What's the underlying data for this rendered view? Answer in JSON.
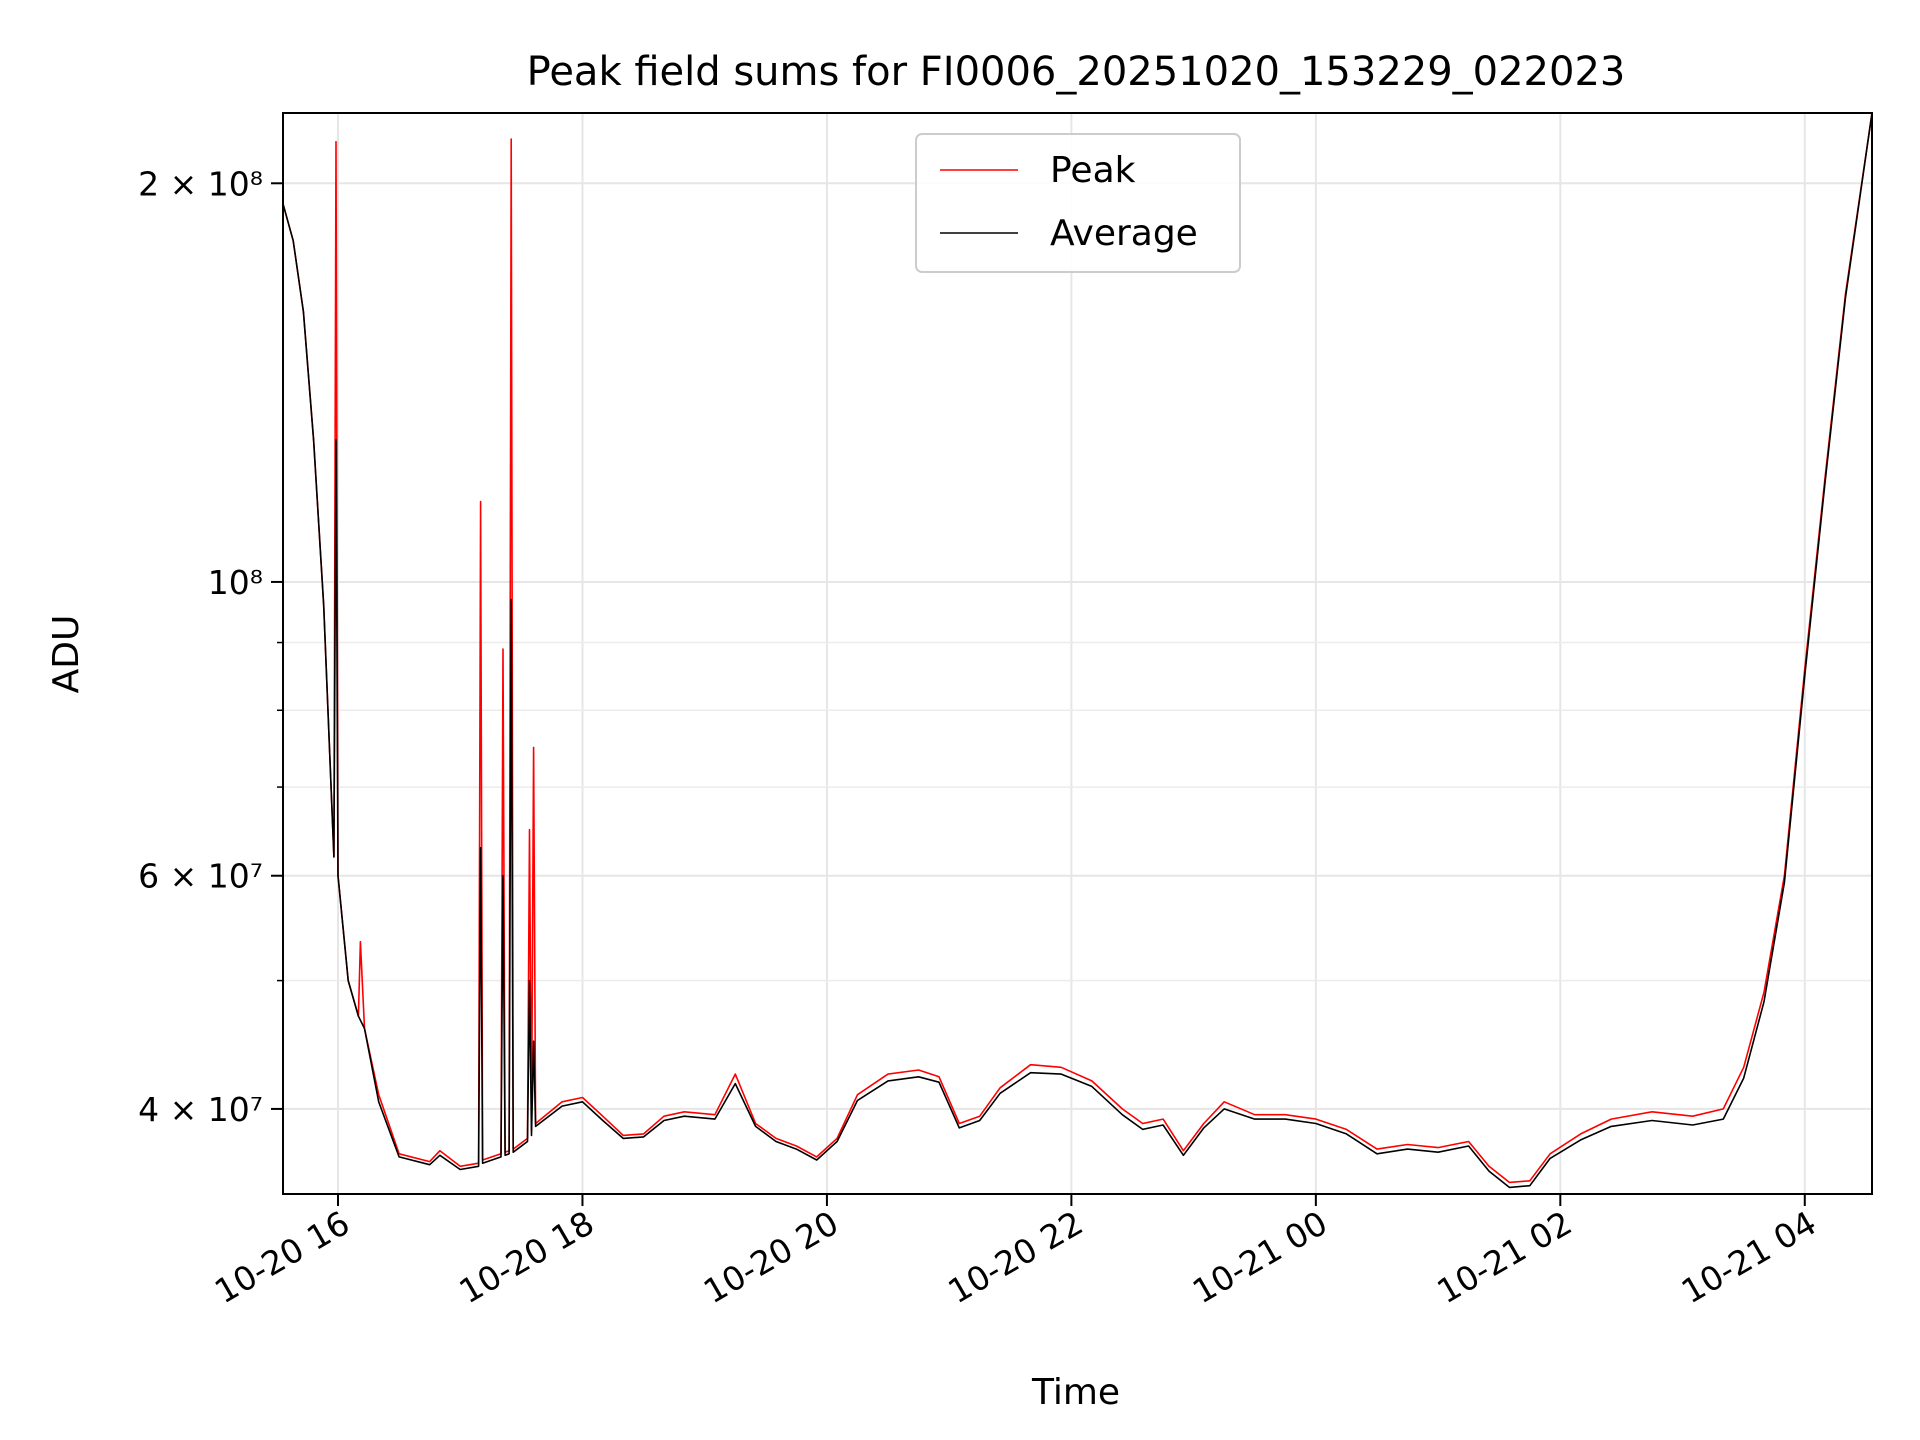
{
  "chart_data": {
    "type": "line",
    "title": "Peak field sums for FI0006_20251020_153229_022023",
    "xlabel": "Time",
    "ylabel": "ADU",
    "yscale": "log",
    "xlim": [
      "2025-10-20 15:33",
      "2025-10-21 04:33"
    ],
    "ylim": [
      34500000,
      226000000
    ],
    "grid": true,
    "legend": "upper center",
    "x_ticks": [
      {
        "t": "2025-10-20 16:00",
        "label": "10-20 16"
      },
      {
        "t": "2025-10-20 18:00",
        "label": "10-20 18"
      },
      {
        "t": "2025-10-20 20:00",
        "label": "10-20 20"
      },
      {
        "t": "2025-10-20 22:00",
        "label": "10-20 22"
      },
      {
        "t": "2025-10-21 00:00",
        "label": "10-21 00"
      },
      {
        "t": "2025-10-21 02:00",
        "label": "10-21 02"
      },
      {
        "t": "2025-10-21 04:00",
        "label": "10-21 04"
      }
    ],
    "y_ticks": [
      {
        "v": 40000000,
        "label": "4 × 10⁷"
      },
      {
        "v": 60000000,
        "label": "6 × 10⁷"
      },
      {
        "v": 100000000,
        "label": "10⁸"
      },
      {
        "v": 200000000,
        "label": "2 × 10⁸"
      }
    ],
    "y_minor_ticks": [
      50000000,
      70000000,
      80000000,
      90000000
    ],
    "series": [
      {
        "name": "Peak",
        "color": "#ff0000",
        "points": [
          [
            "2025-10-20 15:33",
            193000000
          ],
          [
            "2025-10-20 15:38",
            181000000
          ],
          [
            "2025-10-20 15:43",
            160000000
          ],
          [
            "2025-10-20 15:48",
            128000000
          ],
          [
            "2025-10-20 15:53",
            96000000
          ],
          [
            "2025-10-20 15:58",
            62000000
          ],
          [
            "2025-10-20 15:59",
            215000000
          ],
          [
            "2025-10-20 16:00",
            60000000
          ],
          [
            "2025-10-20 16:05",
            50000000
          ],
          [
            "2025-10-20 16:10",
            47000000
          ],
          [
            "2025-10-20 16:11",
            53500000
          ],
          [
            "2025-10-20 16:13",
            46000000
          ],
          [
            "2025-10-20 16:20",
            41000000
          ],
          [
            "2025-10-20 16:30",
            37000000
          ],
          [
            "2025-10-20 16:45",
            36500000
          ],
          [
            "2025-10-20 16:50",
            37200000
          ],
          [
            "2025-10-20 17:00",
            36200000
          ],
          [
            "2025-10-20 17:09",
            36400000
          ],
          [
            "2025-10-20 17:10",
            115000000
          ],
          [
            "2025-10-20 17:11",
            36600000
          ],
          [
            "2025-10-20 17:20",
            37000000
          ],
          [
            "2025-10-20 17:21",
            89000000
          ],
          [
            "2025-10-20 17:22",
            37100000
          ],
          [
            "2025-10-20 17:24",
            37200000
          ],
          [
            "2025-10-20 17:25",
            216000000
          ],
          [
            "2025-10-20 17:26",
            37300000
          ],
          [
            "2025-10-20 17:33",
            38000000
          ],
          [
            "2025-10-20 17:34",
            65000000
          ],
          [
            "2025-10-20 17:35",
            38500000
          ],
          [
            "2025-10-20 17:36",
            75000000
          ],
          [
            "2025-10-20 17:37",
            39000000
          ],
          [
            "2025-10-20 17:50",
            40500000
          ],
          [
            "2025-10-20 18:00",
            40800000
          ],
          [
            "2025-10-20 18:10",
            39500000
          ],
          [
            "2025-10-20 18:20",
            38200000
          ],
          [
            "2025-10-20 18:30",
            38300000
          ],
          [
            "2025-10-20 18:40",
            39500000
          ],
          [
            "2025-10-20 18:50",
            39800000
          ],
          [
            "2025-10-20 19:05",
            39600000
          ],
          [
            "2025-10-20 19:15",
            42500000
          ],
          [
            "2025-10-20 19:25",
            39000000
          ],
          [
            "2025-10-20 19:35",
            38000000
          ],
          [
            "2025-10-20 19:45",
            37500000
          ],
          [
            "2025-10-20 19:55",
            36800000
          ],
          [
            "2025-10-20 20:05",
            38000000
          ],
          [
            "2025-10-20 20:15",
            41000000
          ],
          [
            "2025-10-20 20:30",
            42500000
          ],
          [
            "2025-10-20 20:45",
            42800000
          ],
          [
            "2025-10-20 20:55",
            42300000
          ],
          [
            "2025-10-20 21:05",
            39000000
          ],
          [
            "2025-10-20 21:15",
            39500000
          ],
          [
            "2025-10-20 21:25",
            41500000
          ],
          [
            "2025-10-20 21:40",
            43200000
          ],
          [
            "2025-10-20 21:55",
            43000000
          ],
          [
            "2025-10-20 22:10",
            42000000
          ],
          [
            "2025-10-20 22:25",
            40000000
          ],
          [
            "2025-10-20 22:35",
            39000000
          ],
          [
            "2025-10-20 22:45",
            39300000
          ],
          [
            "2025-10-20 22:55",
            37200000
          ],
          [
            "2025-10-20 23:05",
            39000000
          ],
          [
            "2025-10-20 23:15",
            40500000
          ],
          [
            "2025-10-20 23:30",
            39600000
          ],
          [
            "2025-10-20 23:45",
            39600000
          ],
          [
            "2025-10-21 00:00",
            39300000
          ],
          [
            "2025-10-21 00:15",
            38600000
          ],
          [
            "2025-10-21 00:30",
            37300000
          ],
          [
            "2025-10-21 00:45",
            37600000
          ],
          [
            "2025-10-21 01:00",
            37400000
          ],
          [
            "2025-10-21 01:15",
            37800000
          ],
          [
            "2025-10-21 01:25",
            36200000
          ],
          [
            "2025-10-21 01:35",
            35200000
          ],
          [
            "2025-10-21 01:45",
            35300000
          ],
          [
            "2025-10-21 01:55",
            37000000
          ],
          [
            "2025-10-21 02:10",
            38300000
          ],
          [
            "2025-10-21 02:25",
            39300000
          ],
          [
            "2025-10-21 02:45",
            39800000
          ],
          [
            "2025-10-21 03:05",
            39500000
          ],
          [
            "2025-10-21 03:20",
            40000000
          ],
          [
            "2025-10-21 03:30",
            43000000
          ],
          [
            "2025-10-21 03:40",
            49000000
          ],
          [
            "2025-10-21 03:50",
            60000000
          ],
          [
            "2025-10-21 04:00",
            86000000
          ],
          [
            "2025-10-21 04:10",
            120000000
          ],
          [
            "2025-10-21 04:20",
            165000000
          ],
          [
            "2025-10-21 04:33",
            226000000
          ]
        ]
      },
      {
        "name": "Average",
        "color": "#000000",
        "points": [
          [
            "2025-10-20 15:33",
            193000000
          ],
          [
            "2025-10-20 15:38",
            181000000
          ],
          [
            "2025-10-20 15:43",
            160000000
          ],
          [
            "2025-10-20 15:48",
            128000000
          ],
          [
            "2025-10-20 15:53",
            96000000
          ],
          [
            "2025-10-20 15:58",
            62000000
          ],
          [
            "2025-10-20 15:59",
            128000000
          ],
          [
            "2025-10-20 16:00",
            60000000
          ],
          [
            "2025-10-20 16:05",
            50000000
          ],
          [
            "2025-10-20 16:10",
            47000000
          ],
          [
            "2025-10-20 16:13",
            46000000
          ],
          [
            "2025-10-20 16:20",
            40500000
          ],
          [
            "2025-10-20 16:30",
            36800000
          ],
          [
            "2025-10-20 16:45",
            36300000
          ],
          [
            "2025-10-20 16:50",
            36900000
          ],
          [
            "2025-10-20 17:00",
            36000000
          ],
          [
            "2025-10-20 17:09",
            36200000
          ],
          [
            "2025-10-20 17:10",
            63000000
          ],
          [
            "2025-10-20 17:11",
            36400000
          ],
          [
            "2025-10-20 17:20",
            36800000
          ],
          [
            "2025-10-20 17:21",
            60000000
          ],
          [
            "2025-10-20 17:22",
            36900000
          ],
          [
            "2025-10-20 17:24",
            37000000
          ],
          [
            "2025-10-20 17:25",
            97000000
          ],
          [
            "2025-10-20 17:26",
            37100000
          ],
          [
            "2025-10-20 17:33",
            37800000
          ],
          [
            "2025-10-20 17:34",
            50000000
          ],
          [
            "2025-10-20 17:35",
            38200000
          ],
          [
            "2025-10-20 17:36",
            45000000
          ],
          [
            "2025-10-20 17:37",
            38800000
          ],
          [
            "2025-10-20 17:50",
            40200000
          ],
          [
            "2025-10-20 18:00",
            40500000
          ],
          [
            "2025-10-20 18:10",
            39200000
          ],
          [
            "2025-10-20 18:20",
            38000000
          ],
          [
            "2025-10-20 18:30",
            38100000
          ],
          [
            "2025-10-20 18:40",
            39200000
          ],
          [
            "2025-10-20 18:50",
            39500000
          ],
          [
            "2025-10-20 19:05",
            39300000
          ],
          [
            "2025-10-20 19:15",
            41800000
          ],
          [
            "2025-10-20 19:25",
            38800000
          ],
          [
            "2025-10-20 19:35",
            37800000
          ],
          [
            "2025-10-20 19:45",
            37300000
          ],
          [
            "2025-10-20 19:55",
            36600000
          ],
          [
            "2025-10-20 20:05",
            37800000
          ],
          [
            "2025-10-20 20:15",
            40600000
          ],
          [
            "2025-10-20 20:30",
            42000000
          ],
          [
            "2025-10-20 20:45",
            42300000
          ],
          [
            "2025-10-20 20:55",
            41900000
          ],
          [
            "2025-10-20 21:05",
            38700000
          ],
          [
            "2025-10-20 21:15",
            39200000
          ],
          [
            "2025-10-20 21:25",
            41100000
          ],
          [
            "2025-10-20 21:40",
            42600000
          ],
          [
            "2025-10-20 21:55",
            42500000
          ],
          [
            "2025-10-20 22:10",
            41600000
          ],
          [
            "2025-10-20 22:25",
            39600000
          ],
          [
            "2025-10-20 22:35",
            38600000
          ],
          [
            "2025-10-20 22:45",
            38900000
          ],
          [
            "2025-10-20 22:55",
            36900000
          ],
          [
            "2025-10-20 23:05",
            38700000
          ],
          [
            "2025-10-20 23:15",
            40000000
          ],
          [
            "2025-10-20 23:30",
            39300000
          ],
          [
            "2025-10-20 23:45",
            39300000
          ],
          [
            "2025-10-21 00:00",
            39000000
          ],
          [
            "2025-10-21 00:15",
            38300000
          ],
          [
            "2025-10-21 00:30",
            37000000
          ],
          [
            "2025-10-21 00:45",
            37300000
          ],
          [
            "2025-10-21 01:00",
            37100000
          ],
          [
            "2025-10-21 01:15",
            37500000
          ],
          [
            "2025-10-21 01:25",
            35900000
          ],
          [
            "2025-10-21 01:35",
            34900000
          ],
          [
            "2025-10-21 01:45",
            35000000
          ],
          [
            "2025-10-21 01:55",
            36700000
          ],
          [
            "2025-10-21 02:10",
            37900000
          ],
          [
            "2025-10-21 02:25",
            38800000
          ],
          [
            "2025-10-21 02:45",
            39200000
          ],
          [
            "2025-10-21 03:05",
            38900000
          ],
          [
            "2025-10-21 03:20",
            39300000
          ],
          [
            "2025-10-21 03:30",
            42200000
          ],
          [
            "2025-10-21 03:40",
            48200000
          ],
          [
            "2025-10-21 03:50",
            59300000
          ],
          [
            "2025-10-21 04:00",
            85000000
          ],
          [
            "2025-10-21 04:10",
            119000000
          ],
          [
            "2025-10-21 04:20",
            164000000
          ],
          [
            "2025-10-21 04:33",
            226000000
          ]
        ]
      }
    ]
  }
}
